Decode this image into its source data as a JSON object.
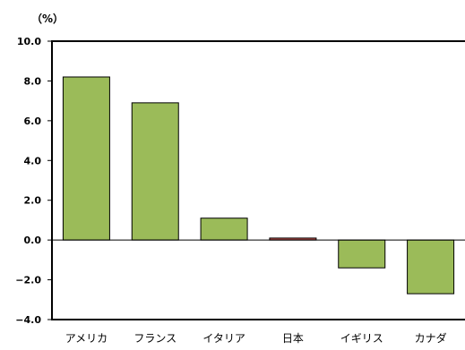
{
  "chart_data": {
    "type": "bar",
    "unit_label": "（%）",
    "categories": [
      "アメリカ",
      "フランス",
      "イタリア",
      "日本",
      "イギリス",
      "カナダ"
    ],
    "values": [
      8.2,
      6.9,
      1.1,
      0.1,
      -1.4,
      -2.7
    ],
    "bar_colors": [
      "#9BBB59",
      "#9BBB59",
      "#9BBB59",
      "#C0504D",
      "#9BBB59",
      "#9BBB59"
    ],
    "ylim": [
      -4.0,
      10.0
    ],
    "yticks": [
      10.0,
      8.0,
      6.0,
      4.0,
      2.0,
      0.0,
      -2.0,
      -4.0
    ],
    "ytick_labels": [
      "10.0",
      "8.0",
      "6.0",
      "4.0",
      "2.0",
      "0.0",
      "−2.0",
      "−4.0"
    ],
    "grid": false,
    "title": "",
    "xlabel": "",
    "ylabel": ""
  }
}
